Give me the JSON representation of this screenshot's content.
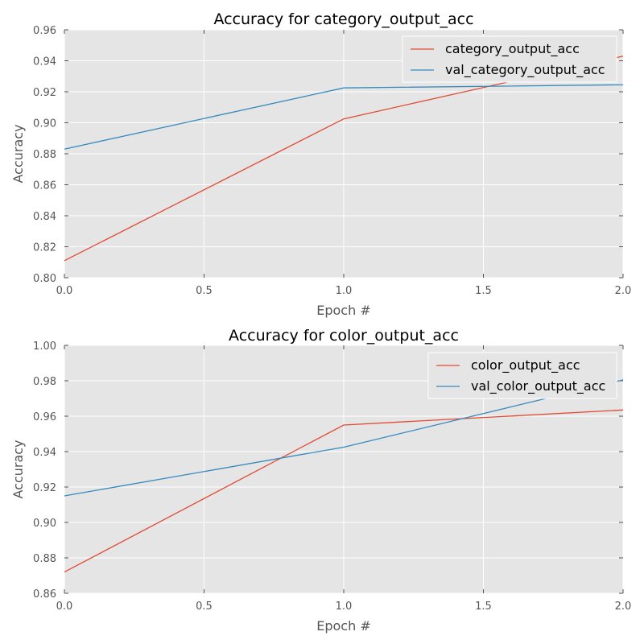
{
  "chart_data": [
    {
      "type": "line",
      "title": "Accuracy for category_output_acc",
      "xlabel": "Epoch #",
      "ylabel": "Accuracy",
      "xlim": [
        0.0,
        2.0
      ],
      "ylim": [
        0.8,
        0.96
      ],
      "xticks": [
        "0.0",
        "0.5",
        "1.0",
        "1.5",
        "2.0"
      ],
      "yticks": [
        "0.80",
        "0.82",
        "0.84",
        "0.86",
        "0.88",
        "0.90",
        "0.92",
        "0.94",
        "0.96"
      ],
      "grid": true,
      "legend_position": "top-right",
      "x": [
        0,
        1,
        2
      ],
      "series": [
        {
          "name": "category_output_acc",
          "color": "#e24a33",
          "values": [
            0.811,
            0.9025,
            0.943
          ]
        },
        {
          "name": "val_category_output_acc",
          "color": "#348abd",
          "values": [
            0.883,
            0.9225,
            0.9245
          ]
        }
      ]
    },
    {
      "type": "line",
      "title": "Accuracy for color_output_acc",
      "xlabel": "Epoch #",
      "ylabel": "Accuracy",
      "xlim": [
        0.0,
        2.0
      ],
      "ylim": [
        0.86,
        1.0
      ],
      "xticks": [
        "0.0",
        "0.5",
        "1.0",
        "1.5",
        "2.0"
      ],
      "yticks": [
        "0.86",
        "0.88",
        "0.90",
        "0.92",
        "0.94",
        "0.96",
        "0.98",
        "1.00"
      ],
      "grid": true,
      "legend_position": "top-right",
      "x": [
        0,
        1,
        2
      ],
      "series": [
        {
          "name": "color_output_acc",
          "color": "#e24a33",
          "values": [
            0.872,
            0.955,
            0.9635
          ]
        },
        {
          "name": "val_color_output_acc",
          "color": "#348abd",
          "values": [
            0.915,
            0.9425,
            0.9805
          ]
        }
      ]
    }
  ]
}
